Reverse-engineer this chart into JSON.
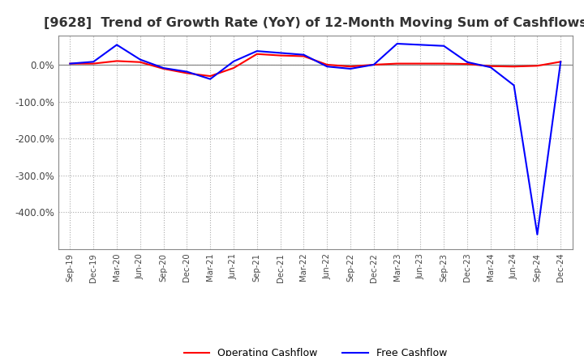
{
  "title": "[9628]  Trend of Growth Rate (YoY) of 12-Month Moving Sum of Cashflows",
  "title_fontsize": 11.5,
  "background_color": "#ffffff",
  "grid_color": "#aaaaaa",
  "x_labels": [
    "Sep-19",
    "Dec-19",
    "Mar-20",
    "Jun-20",
    "Sep-20",
    "Dec-20",
    "Mar-21",
    "Jun-21",
    "Sep-21",
    "Dec-21",
    "Mar-22",
    "Jun-22",
    "Sep-22",
    "Dec-22",
    "Mar-23",
    "Jun-23",
    "Sep-23",
    "Dec-23",
    "Mar-24",
    "Jun-24",
    "Sep-24",
    "Dec-24"
  ],
  "operating_cashflow": [
    0.04,
    0.04,
    0.11,
    0.08,
    -0.1,
    -0.22,
    -0.3,
    -0.08,
    0.3,
    0.26,
    0.24,
    0.01,
    -0.04,
    0.01,
    0.04,
    0.04,
    0.04,
    0.03,
    -0.03,
    -0.04,
    -0.02,
    0.09
  ],
  "free_cashflow": [
    0.04,
    0.09,
    0.55,
    0.15,
    -0.08,
    -0.18,
    -0.38,
    0.1,
    0.38,
    0.33,
    0.28,
    -0.04,
    -0.1,
    0.01,
    0.58,
    0.55,
    0.52,
    0.08,
    -0.06,
    -0.55,
    -4.6,
    0.09
  ],
  "operating_color": "#ff0000",
  "free_color": "#0000ff",
  "line_width": 1.5,
  "ylim_min": -5.0,
  "ylim_max": 0.8,
  "yticks": [
    -4.0,
    -3.0,
    -2.0,
    -1.0,
    0.0
  ]
}
